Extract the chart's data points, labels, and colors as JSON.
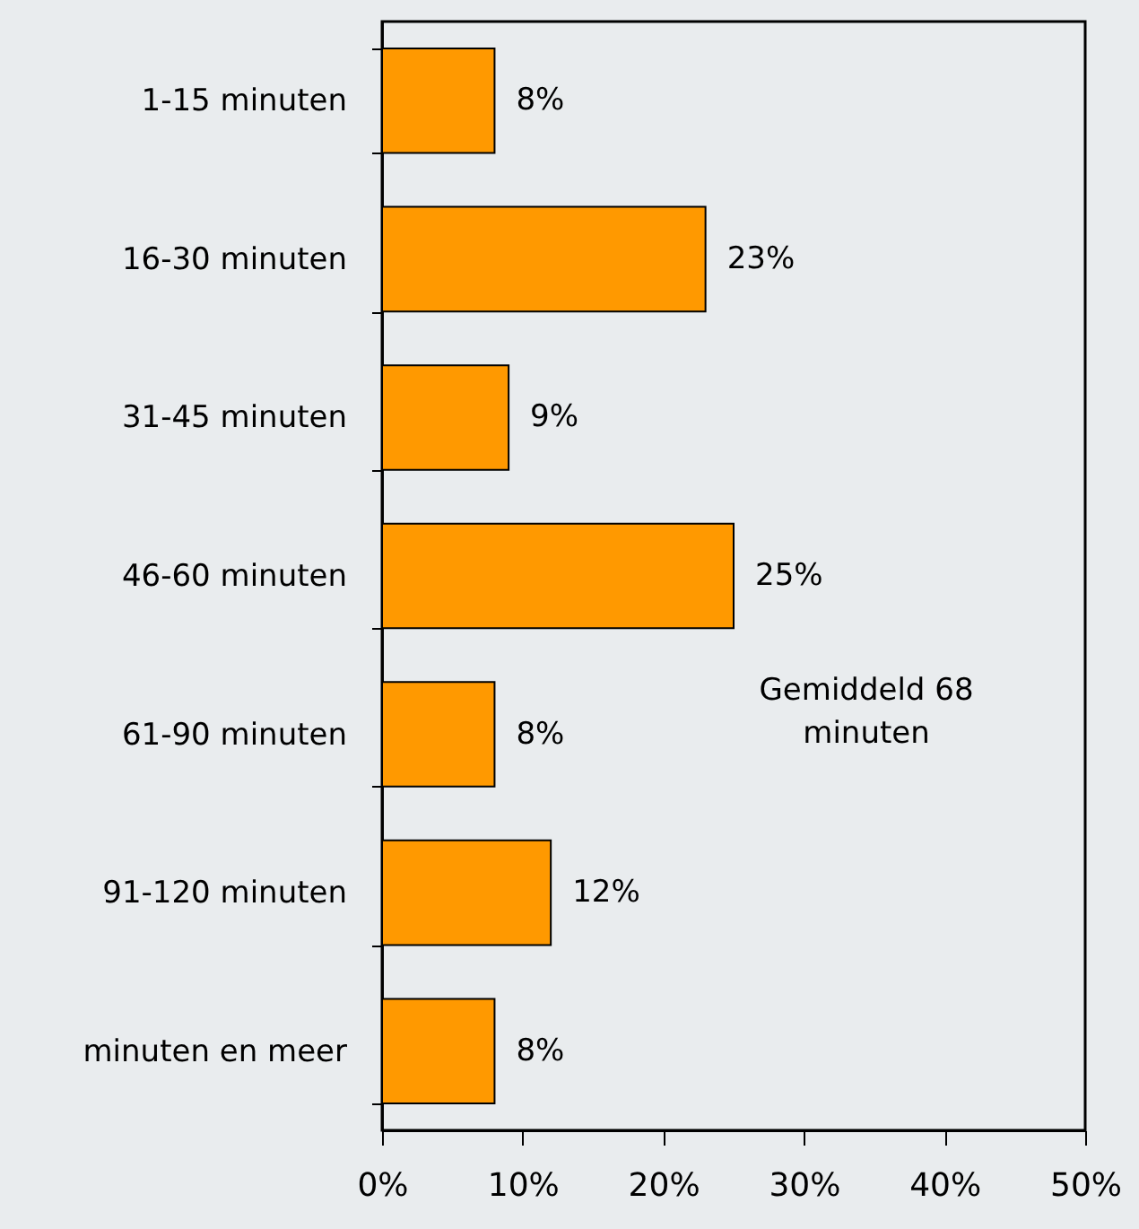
{
  "chart_data": {
    "type": "bar",
    "orientation": "horizontal",
    "categories": [
      "1-15 minuten",
      "16-30 minuten",
      "31-45 minuten",
      "46-60 minuten",
      "61-90 minuten",
      "91-120 minuten",
      "minuten en meer"
    ],
    "values": [
      8,
      23,
      9,
      25,
      8,
      12,
      8
    ],
    "value_labels": [
      "8%",
      "23%",
      "9%",
      "25%",
      "8%",
      "12%",
      "8%"
    ],
    "color": "#ff9900",
    "xlim": [
      0,
      50
    ],
    "xticks": [
      {
        "value": 0,
        "label": "0%"
      },
      {
        "value": 10,
        "label": "10%"
      },
      {
        "value": 20,
        "label": "20%"
      },
      {
        "value": 30,
        "label": "30%"
      },
      {
        "value": 40,
        "label": "40%"
      },
      {
        "value": 50,
        "label": "50%"
      }
    ],
    "grid": false,
    "annotations": [
      "Gemiddeld 68 minuten"
    ]
  }
}
